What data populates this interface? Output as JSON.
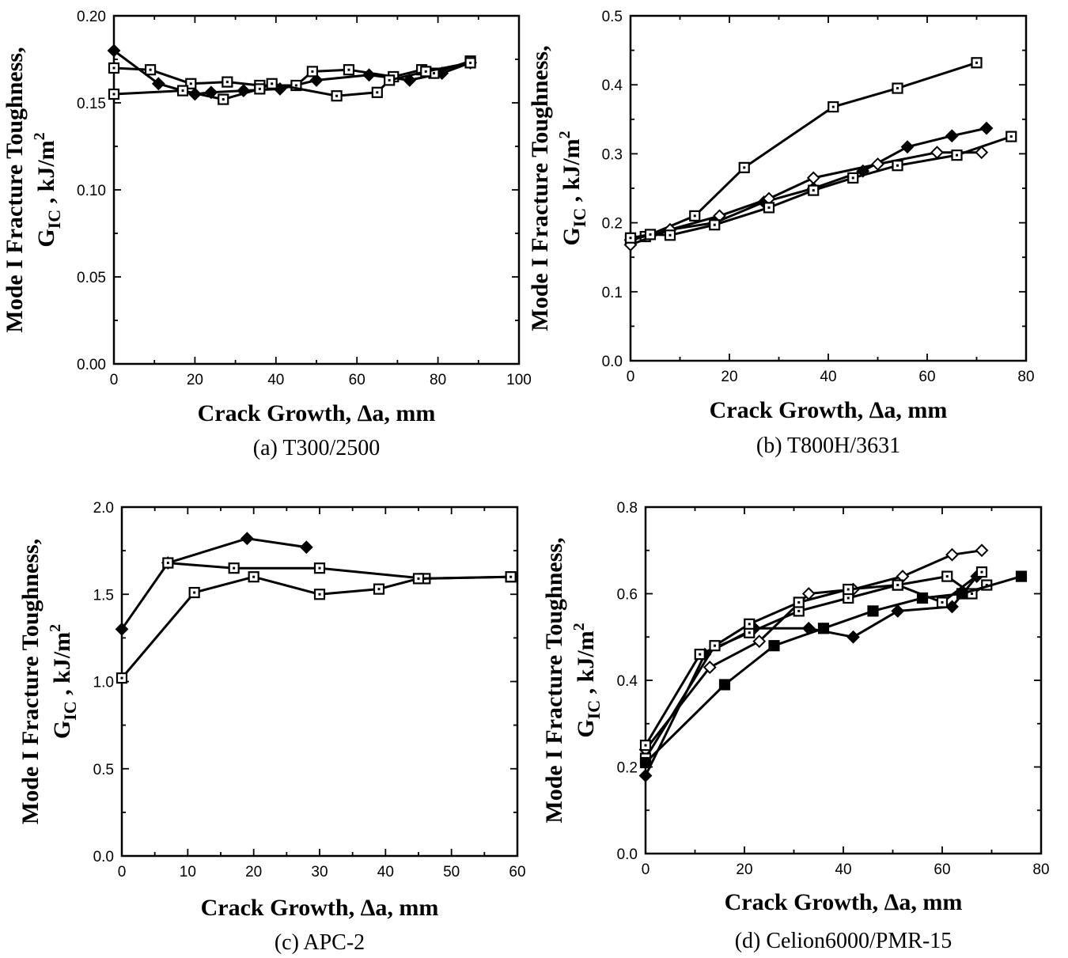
{
  "ylabel": {
    "main": "Mode I Fracture Toughness,",
    "sub": "G",
    "subscript": "IC",
    "unit": " ,  kJ/m",
    "sup": "2"
  },
  "chart_data": [
    {
      "type": "line",
      "caption": "(a) T300/2500",
      "xlabel": "Crack Growth,  Δa,  mm",
      "xlim": [
        0,
        100
      ],
      "ylim": [
        0,
        0.2
      ],
      "xticks": [
        0,
        20,
        40,
        60,
        80,
        100
      ],
      "yticks": [
        0,
        0.05,
        0.1,
        0.15,
        0.2
      ],
      "xtick_labels": [
        "0",
        "20",
        "40",
        "60",
        "80",
        "100"
      ],
      "ytick_labels": [
        "0.00",
        "0.05",
        "0.10",
        "0.15",
        "0.20"
      ],
      "grid": false,
      "series": [
        {
          "marker": "diamond-filled",
          "x": [
            0,
            11,
            20,
            24,
            32,
            41,
            50,
            63,
            73,
            81,
            88
          ],
          "y": [
            0.18,
            0.161,
            0.155,
            0.156,
            0.157,
            0.158,
            0.163,
            0.166,
            0.163,
            0.167,
            0.173
          ]
        },
        {
          "marker": "square-open",
          "x": [
            0,
            9,
            19,
            28,
            36,
            45,
            49,
            58,
            69,
            76,
            79,
            88
          ],
          "y": [
            0.17,
            0.169,
            0.161,
            0.162,
            0.16,
            0.16,
            0.168,
            0.169,
            0.165,
            0.169,
            0.167,
            0.174
          ]
        },
        {
          "marker": "square-open",
          "x": [
            0,
            17,
            27,
            36,
            39,
            55,
            65,
            68,
            77,
            88
          ],
          "y": [
            0.155,
            0.157,
            0.152,
            0.158,
            0.161,
            0.154,
            0.156,
            0.163,
            0.168,
            0.173
          ]
        }
      ]
    },
    {
      "type": "line",
      "caption": "(b) T800H/3631",
      "xlabel": "Crack Growth,  Δa,  mm",
      "xlim": [
        0,
        80
      ],
      "ylim": [
        0,
        0.5
      ],
      "xticks": [
        0,
        20,
        40,
        60,
        80
      ],
      "yticks": [
        0,
        0.1,
        0.2,
        0.3,
        0.4,
        0.5
      ],
      "xtick_labels": [
        "0",
        "20",
        "40",
        "60",
        "80"
      ],
      "ytick_labels": [
        "0.0",
        "0.1",
        "0.2",
        "0.3",
        "0.4",
        "0.5"
      ],
      "grid": false,
      "series": [
        {
          "marker": "square-open",
          "x": [
            0,
            3,
            13,
            23,
            41,
            54,
            70
          ],
          "y": [
            0.175,
            0.18,
            0.21,
            0.28,
            0.368,
            0.395,
            0.432
          ]
        },
        {
          "marker": "diamond-filled",
          "x": [
            0,
            8,
            17,
            27,
            37,
            47,
            56,
            65,
            72
          ],
          "y": [
            0.175,
            0.19,
            0.2,
            0.23,
            0.25,
            0.275,
            0.31,
            0.326,
            0.337
          ]
        },
        {
          "marker": "diamond-open",
          "x": [
            0,
            8,
            18,
            28,
            37,
            50,
            62,
            71
          ],
          "y": [
            0.168,
            0.19,
            0.21,
            0.235,
            0.265,
            0.285,
            0.302,
            0.302
          ]
        },
        {
          "marker": "square-open",
          "x": [
            0,
            4,
            8,
            17,
            28,
            37,
            45,
            54,
            66,
            77
          ],
          "y": [
            0.178,
            0.183,
            0.182,
            0.197,
            0.222,
            0.247,
            0.265,
            0.283,
            0.298,
            0.325
          ]
        }
      ]
    },
    {
      "type": "line",
      "caption": "(c) APC-2",
      "xlabel": "Crack Growth,  Δa,  mm",
      "xlim": [
        0,
        60
      ],
      "ylim": [
        0,
        2
      ],
      "xticks": [
        0,
        10,
        20,
        30,
        40,
        50,
        60
      ],
      "yticks": [
        0,
        0.5,
        1,
        1.5,
        2
      ],
      "xtick_labels": [
        "0",
        "10",
        "20",
        "30",
        "40",
        "50",
        "60"
      ],
      "ytick_labels": [
        "0.0",
        "0.5",
        "1.0",
        "1.5",
        "2.0"
      ],
      "grid": false,
      "series": [
        {
          "marker": "diamond-filled",
          "x": [
            0,
            7,
            19,
            28
          ],
          "y": [
            1.3,
            1.68,
            1.82,
            1.77
          ]
        },
        {
          "marker": "square-open",
          "x": [
            7,
            17,
            30,
            46,
            59
          ],
          "y": [
            1.68,
            1.65,
            1.65,
            1.59,
            1.6
          ]
        },
        {
          "marker": "square-open",
          "x": [
            0,
            11,
            20,
            30,
            39,
            45,
            59
          ],
          "y": [
            1.02,
            1.51,
            1.6,
            1.5,
            1.53,
            1.59,
            1.6
          ]
        }
      ]
    },
    {
      "type": "line",
      "caption": "(d) Celion6000/PMR-15",
      "xlabel": "Crack Growth,  Δa,  mm",
      "xlim": [
        0,
        80
      ],
      "ylim": [
        0,
        0.8
      ],
      "xticks": [
        0,
        20,
        40,
        60,
        80
      ],
      "yticks": [
        0,
        0.2,
        0.4,
        0.6,
        0.8
      ],
      "xtick_labels": [
        "0",
        "20",
        "40",
        "60",
        "80"
      ],
      "ytick_labels": [
        "0.0",
        "0.2",
        "0.4",
        "0.6",
        "0.8"
      ],
      "grid": false,
      "series": [
        {
          "marker": "diamond-filled",
          "x": [
            0,
            12,
            22,
            33,
            42,
            51,
            62,
            67
          ],
          "y": [
            0.18,
            0.46,
            0.52,
            0.52,
            0.5,
            0.56,
            0.57,
            0.64
          ]
        },
        {
          "marker": "diamond-open",
          "x": [
            0,
            13,
            23,
            33,
            42,
            52,
            62,
            68
          ],
          "y": [
            0.24,
            0.43,
            0.49,
            0.6,
            0.61,
            0.64,
            0.69,
            0.7
          ]
        },
        {
          "marker": "square-open",
          "x": [
            0,
            11,
            21,
            31,
            41,
            51,
            60,
            68
          ],
          "y": [
            0.25,
            0.46,
            0.51,
            0.56,
            0.59,
            0.62,
            0.58,
            0.65
          ]
        },
        {
          "marker": "square-open",
          "x": [
            0,
            14,
            21,
            31,
            41,
            51,
            61,
            66,
            69
          ],
          "y": [
            0.22,
            0.48,
            0.53,
            0.58,
            0.61,
            0.62,
            0.64,
            0.6,
            0.62
          ]
        },
        {
          "marker": "square-filled",
          "x": [
            0,
            16,
            26,
            36,
            46,
            56,
            64,
            76
          ],
          "y": [
            0.21,
            0.39,
            0.48,
            0.52,
            0.56,
            0.59,
            0.6,
            0.64
          ]
        }
      ]
    }
  ]
}
